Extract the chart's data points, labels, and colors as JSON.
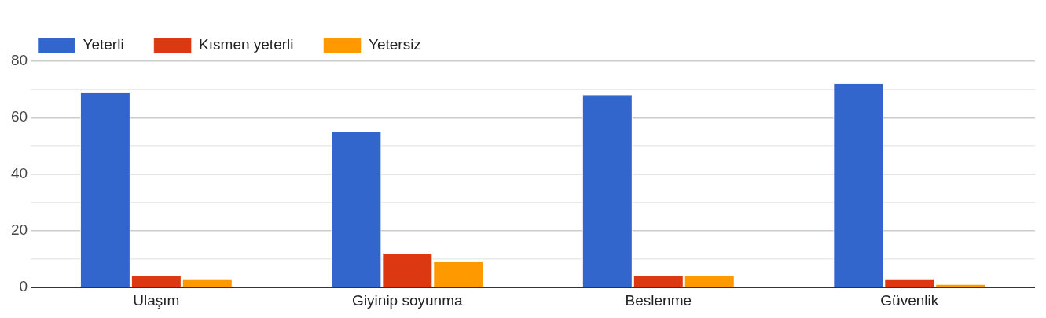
{
  "chart_data": {
    "type": "bar",
    "categories": [
      "Ulaşım",
      "Giyinip soyunma",
      "Beslenme",
      "Güvenlik"
    ],
    "series": [
      {
        "name": "Yeterli",
        "color": "#3366cc",
        "values": [
          69,
          55,
          68,
          72
        ]
      },
      {
        "name": "Kısmen yeterli",
        "color": "#dc3912",
        "values": [
          4,
          12,
          4,
          3
        ]
      },
      {
        "name": "Yetersiz",
        "color": "#ff9900",
        "values": [
          3,
          9,
          4,
          1
        ]
      }
    ],
    "ylim": [
      0,
      80
    ],
    "yticks": [
      0,
      {
        "value": 10,
        "label": null
      },
      20,
      {
        "value": 30,
        "label": null
      },
      40,
      {
        "value": 50,
        "label": null
      },
      60,
      {
        "value": 70,
        "label": null
      },
      80
    ],
    "grid": "y",
    "legend": "top left"
  }
}
